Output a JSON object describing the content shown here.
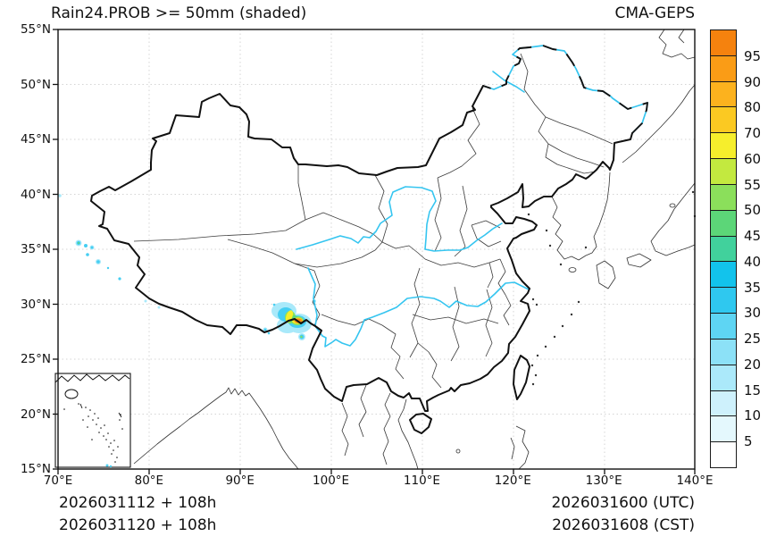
{
  "header": {
    "title": "Rain24.PROB >= 50mm (shaded)",
    "model": "CMA-GEPS"
  },
  "axes": {
    "lat_ticks": [
      "55°N",
      "50°N",
      "45°N",
      "40°N",
      "35°N",
      "30°N",
      "25°N",
      "20°N",
      "15°N"
    ],
    "lon_ticks": [
      "70°E",
      "80°E",
      "90°E",
      "100°E",
      "110°E",
      "120°E",
      "130°E",
      "140°E"
    ],
    "lat_range": [
      15,
      55
    ],
    "lon_range": [
      70,
      140
    ]
  },
  "colorbar": {
    "labels": [
      "95",
      "90",
      "80",
      "70",
      "60",
      "55",
      "50",
      "45",
      "40",
      "35",
      "30",
      "25",
      "20",
      "15",
      "10",
      "5"
    ],
    "colors": [
      "#f5820e",
      "#fa9c16",
      "#fcb21e",
      "#fbc922",
      "#f6ee2c",
      "#c3e93f",
      "#8bdf5b",
      "#5cd678",
      "#41d19c",
      "#12c3ec",
      "#2fc8ef",
      "#5ed5f3",
      "#8ce1f7",
      "#abe9fa",
      "#cef1fc",
      "#e4f8fd",
      "#ffffff"
    ]
  },
  "footer": {
    "left_line1": "2026031112 + 108h",
    "left_line2": "2026031120 + 108h",
    "right_line1": "2026031600 (UTC)",
    "right_line2": "2026031608 (CST)"
  },
  "style": {
    "river_color": "#35c5f0",
    "border_color": "#111111",
    "province_color": "#3c3c3c",
    "grid_color": "#d4d4d4"
  }
}
